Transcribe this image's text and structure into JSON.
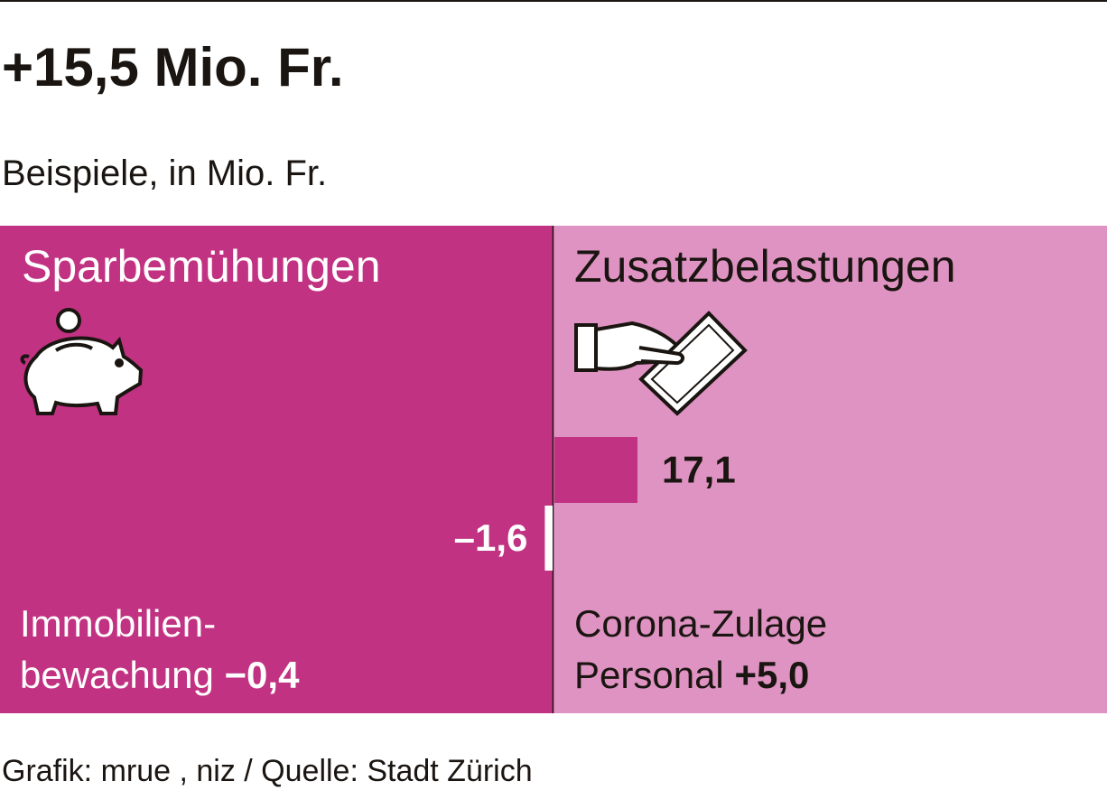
{
  "chart_data": {
    "type": "bar",
    "orientation": "horizontal",
    "title": "+15,5 Mio. Fr.",
    "subtitle": "Beispiele, in Mio. Fr.",
    "panels": [
      "Sparbemühungen",
      "Zusatzbelastungen"
    ],
    "categories": [
      null,
      null
    ],
    "values": [
      17.1,
      -1.6
    ],
    "value_labels": [
      "17,1",
      "–1,6"
    ],
    "colors": [
      "#c13282",
      "#ffffff"
    ],
    "xlim": [
      -114,
      114
    ],
    "examples": [
      {
        "lines": [
          "Immobilien-",
          "bewachung"
        ],
        "value_label": "−0,4"
      },
      {
        "lines": [
          "Corona-Zulage",
          "Personal"
        ],
        "value_label": "+5,0"
      }
    ],
    "source": "Grafik: mrue , niz / Quelle: Stadt Zürich"
  }
}
